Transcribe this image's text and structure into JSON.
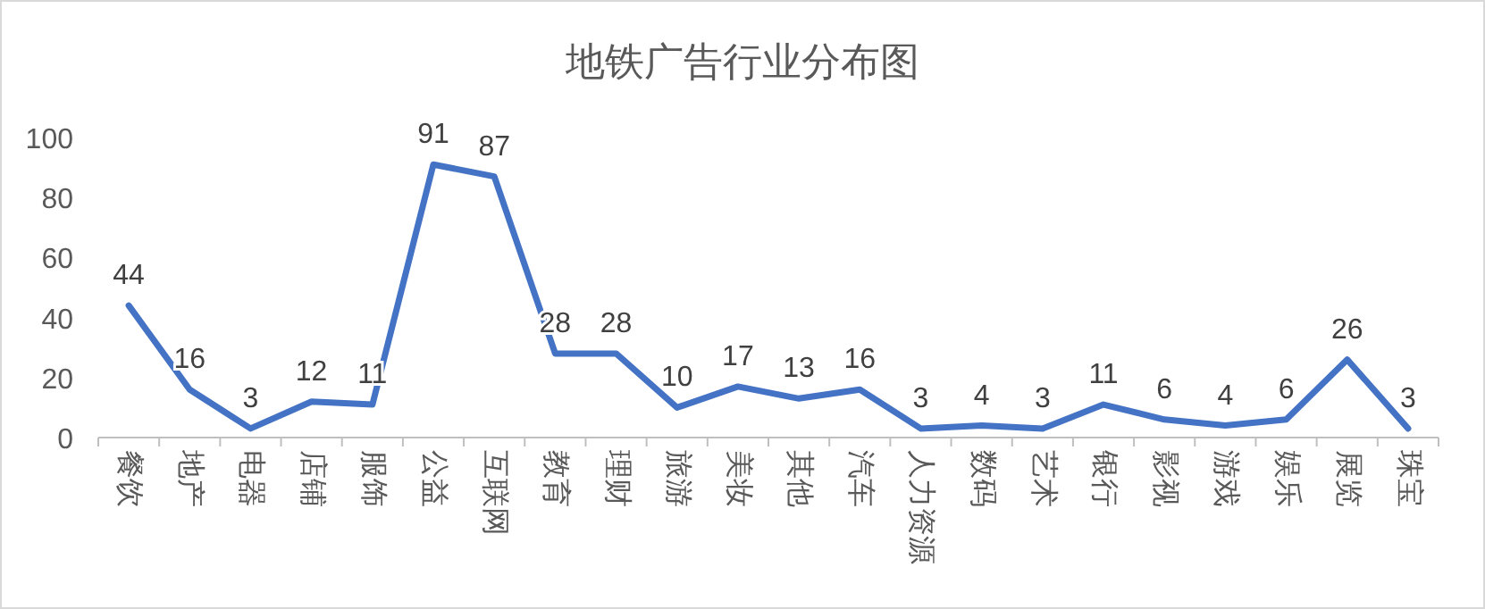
{
  "chart_data": {
    "type": "line",
    "title": "地铁广告行业分布图",
    "categories": [
      "餐饮",
      "地产",
      "电器",
      "店铺",
      "服饰",
      "公益",
      "互联网",
      "教育",
      "理财",
      "旅游",
      "美妆",
      "其他",
      "汽车",
      "人力资源",
      "数码",
      "艺术",
      "银行",
      "影视",
      "游戏",
      "娱乐",
      "展览",
      "珠宝"
    ],
    "series": [
      {
        "color": "#4472c4",
        "values": [
          44,
          16,
          3,
          12,
          11,
          91,
          87,
          28,
          28,
          10,
          17,
          13,
          16,
          3,
          4,
          3,
          11,
          6,
          4,
          6,
          26,
          3
        ]
      }
    ],
    "ylim": [
      0,
      100
    ],
    "yticks": [
      0,
      20,
      40,
      60,
      80,
      100
    ],
    "grid": false,
    "data_labels": true,
    "marker": "none",
    "line_style": "solid"
  }
}
